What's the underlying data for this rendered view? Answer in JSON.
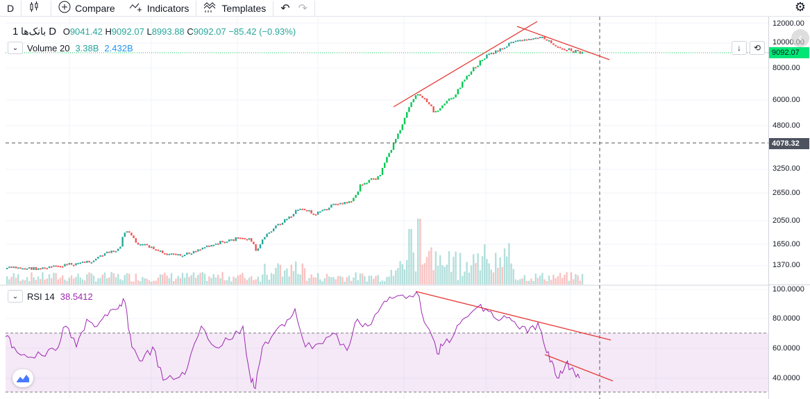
{
  "toolbar": {
    "interval": "D",
    "compare": "Compare",
    "indicators": "Indicators",
    "templates": "Templates"
  },
  "legend": {
    "symbol": "بانک‌ها",
    "timeframe": "1D",
    "o_label": "O",
    "o_val": "9041.42",
    "h_label": "H",
    "h_val": "9092.07",
    "l_label": "L",
    "l_val": "8993.88",
    "c_label": "C",
    "c_val": "9092.07",
    "change": "−85.42 (−0.93%)"
  },
  "volume": {
    "label": "Volume 20",
    "v1": "3.38B",
    "v2": "2.432B"
  },
  "rsi": {
    "label": "RSI 14",
    "value": "38.5412"
  },
  "price_axis": {
    "labels": [
      "12000.00",
      "10000.00",
      "8000.00",
      "6000.00",
      "4800.00",
      "3250.00",
      "2650.00",
      "2050.00",
      "1650.00",
      "1370.00"
    ],
    "current_price": "9092.07",
    "crosshair_price": "4078.32"
  },
  "rsi_axis": {
    "labels": [
      "100.0000",
      "80.0000",
      "60.0000",
      "40.0000"
    ]
  },
  "colors": {
    "up": "#26a69a",
    "up_bright": "#00c853",
    "down": "#ef5350",
    "trendline": "#e53935",
    "rsi_line": "#9c27b0",
    "rsi_band": "rgba(156,39,176,0.1)",
    "current_tag": "#00e676",
    "crosshair_tag": "#4c525e"
  },
  "icons": [
    "candles-icon",
    "plus-circle-icon",
    "indicators-icon",
    "templates-icon",
    "undo-icon",
    "redo-icon",
    "gear-icon",
    "chevron-down-icon",
    "arrow-down-icon",
    "refresh-icon",
    "tv-logo-icon"
  ]
}
